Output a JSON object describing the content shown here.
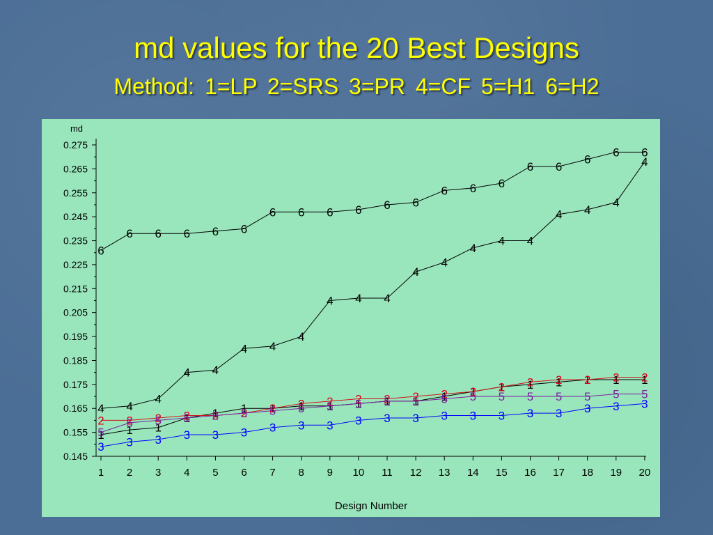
{
  "slide": {
    "title": "md values for the 20 Best Designs",
    "subtitle": "Method: 1=LP  2=SRS  3=PR  4=CF  5=H1  6=H2"
  },
  "colors": {
    "background": "#4b6e96",
    "title": "#ffff00",
    "panel": "#9ae6bc",
    "series": {
      "1": "#000000",
      "2": "#e0001a",
      "3": "#0000ff",
      "4": "#000000",
      "5": "#7b1fa2",
      "6": "#000000"
    },
    "lines": {
      "1": "#000000",
      "2": "#d01515",
      "3": "#0000ff",
      "4": "#000000",
      "5": "#7b1fa2",
      "6": "#000000"
    }
  },
  "chart_data": {
    "type": "line",
    "title": "",
    "xlabel": "Design Number",
    "ylabel": "md",
    "x": [
      1,
      2,
      3,
      4,
      5,
      6,
      7,
      8,
      9,
      10,
      11,
      12,
      13,
      14,
      15,
      16,
      17,
      18,
      19,
      20
    ],
    "xticks": [
      "1",
      "2",
      "3",
      "4",
      "5",
      "6",
      "7",
      "8",
      "9",
      "10",
      "11",
      "12",
      "13",
      "14",
      "15",
      "16",
      "17",
      "18",
      "19",
      "20"
    ],
    "yticks": [
      "0.145",
      "0.155",
      "0.165",
      "0.175",
      "0.185",
      "0.195",
      "0.205",
      "0.215",
      "0.225",
      "0.235",
      "0.245",
      "0.255",
      "0.265",
      "0.275"
    ],
    "ylim": [
      0.145,
      0.275
    ],
    "grid": false,
    "series": [
      {
        "name": "1",
        "values": [
          0.154,
          0.156,
          0.157,
          0.161,
          0.163,
          0.165,
          0.165,
          0.166,
          0.166,
          0.167,
          0.168,
          0.168,
          0.17,
          0.172,
          0.174,
          0.175,
          0.176,
          0.177,
          0.177,
          0.177
        ]
      },
      {
        "name": "2",
        "values": [
          0.16,
          0.16,
          0.161,
          0.162,
          0.162,
          0.163,
          0.165,
          0.167,
          0.168,
          0.169,
          0.169,
          0.17,
          0.171,
          0.172,
          0.174,
          0.176,
          0.177,
          0.177,
          0.178,
          0.178
        ]
      },
      {
        "name": "3",
        "values": [
          0.149,
          0.151,
          0.152,
          0.154,
          0.154,
          0.155,
          0.157,
          0.158,
          0.158,
          0.16,
          0.161,
          0.161,
          0.162,
          0.162,
          0.162,
          0.163,
          0.163,
          0.165,
          0.166,
          0.167
        ]
      },
      {
        "name": "4",
        "values": [
          0.165,
          0.166,
          0.169,
          0.18,
          0.181,
          0.19,
          0.191,
          0.195,
          0.21,
          0.211,
          0.211,
          0.222,
          0.226,
          0.232,
          0.235,
          0.235,
          0.246,
          0.248,
          0.251,
          0.268
        ]
      },
      {
        "name": "5",
        "values": [
          0.155,
          0.159,
          0.16,
          0.161,
          0.162,
          0.163,
          0.164,
          0.165,
          0.166,
          0.167,
          0.168,
          0.168,
          0.169,
          0.17,
          0.17,
          0.17,
          0.17,
          0.17,
          0.171,
          0.171
        ]
      },
      {
        "name": "6",
        "values": [
          0.231,
          0.238,
          0.238,
          0.238,
          0.239,
          0.24,
          0.247,
          0.247,
          0.247,
          0.248,
          0.25,
          0.251,
          0.256,
          0.257,
          0.259,
          0.266,
          0.266,
          0.269,
          0.272,
          0.272
        ]
      }
    ]
  }
}
